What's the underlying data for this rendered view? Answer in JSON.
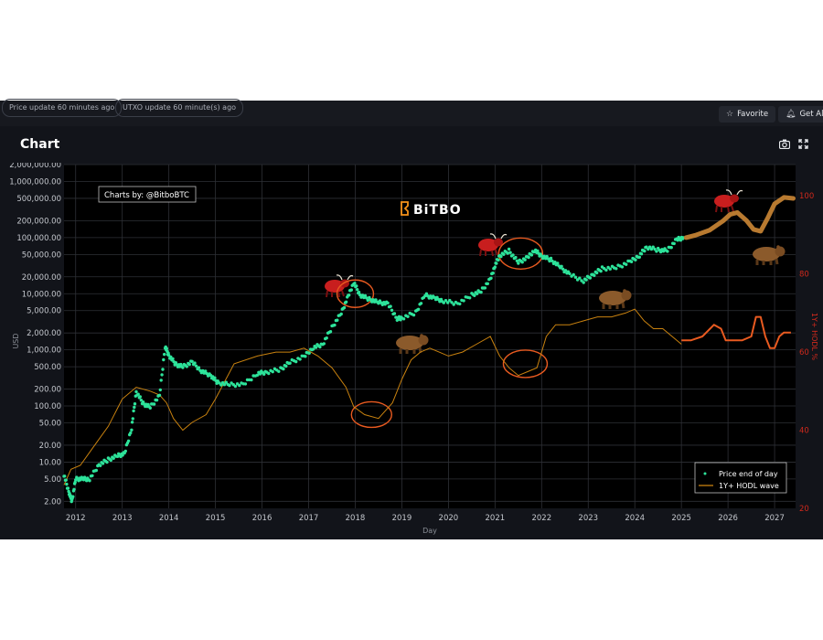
{
  "status": {
    "price_update": "Price update 60 minutes ago",
    "utxo_update": "UTXO update 60 minute(s) ago"
  },
  "actions": {
    "favorite": "Favorite",
    "get_alerts": "Get Aler"
  },
  "header": {
    "title": "Chart"
  },
  "colors": {
    "background": "#000000",
    "price": "#2de39a",
    "hodl": "#c9820f",
    "forecast": "#b87a30",
    "annotation": "#e85a20",
    "right_axis": "#d0291c"
  },
  "chart_data": {
    "type": "scatter",
    "watermark": "Charts by: @BitboBTC",
    "brand": "BiTBO",
    "xlabel": "Day",
    "ylabel": "USD",
    "y2label": "1Y+ HODL %",
    "x_ticks": [
      "2012",
      "2013",
      "2014",
      "2015",
      "2016",
      "2017",
      "2018",
      "2019",
      "2020",
      "2021",
      "2022",
      "2023",
      "2024",
      "2025",
      "2026",
      "2027"
    ],
    "y_ticks": [
      "2,000,000.00",
      "1,000,000.00",
      "500,000.00",
      "200,000.00",
      "100,000.00",
      "50,000.00",
      "20,000.00",
      "10,000.00",
      "5,000.00",
      "2,000.00",
      "1,000.00",
      "500.00",
      "200.00",
      "100.00",
      "50.00",
      "20.00",
      "10.00",
      "5.00",
      "2.00"
    ],
    "y_tick_values": [
      2000000,
      1000000,
      500000,
      200000,
      100000,
      50000,
      20000,
      10000,
      5000,
      2000,
      1000,
      500,
      200,
      100,
      50,
      20,
      10,
      5,
      2
    ],
    "y2_ticks": [
      "100",
      "80",
      "60",
      "40",
      "20"
    ],
    "y2_tick_values": [
      100,
      80,
      60,
      40,
      20
    ],
    "y_scale": "log",
    "y_range": [
      1.5,
      2000000
    ],
    "y2_range": [
      20,
      108
    ],
    "x_range": [
      2011.75,
      2027.45
    ],
    "grid": true,
    "legend_position": "bottom-right",
    "legend": [
      "Price end of day",
      "1Y+ HODL wave"
    ],
    "series": [
      {
        "name": "Price end of day",
        "axis": "left",
        "x": [
          2011.75,
          2011.85,
          2011.92,
          2012.0,
          2012.15,
          2012.3,
          2012.5,
          2012.7,
          2012.9,
          2013.05,
          2013.2,
          2013.3,
          2013.45,
          2013.6,
          2013.8,
          2013.92,
          2014.0,
          2014.15,
          2014.3,
          2014.5,
          2014.7,
          2014.9,
          2015.05,
          2015.3,
          2015.6,
          2015.9,
          2016.1,
          2016.4,
          2016.6,
          2016.9,
          2017.1,
          2017.3,
          2017.5,
          2017.7,
          2017.85,
          2017.97,
          2018.1,
          2018.3,
          2018.5,
          2018.7,
          2018.9,
          2019.0,
          2019.3,
          2019.5,
          2019.7,
          2019.9,
          2020.2,
          2020.5,
          2020.7,
          2020.9,
          2021.0,
          2021.1,
          2021.3,
          2021.5,
          2021.7,
          2021.85,
          2022.0,
          2022.2,
          2022.4,
          2022.6,
          2022.9,
          2023.1,
          2023.3,
          2023.6,
          2023.9,
          2024.1,
          2024.25,
          2024.5,
          2024.7,
          2024.9,
          2025.05
        ],
        "y": [
          6,
          3,
          2,
          5,
          5,
          5,
          9,
          11,
          13,
          14,
          40,
          180,
          110,
          95,
          150,
          1150,
          800,
          550,
          500,
          600,
          420,
          350,
          260,
          240,
          240,
          380,
          400,
          450,
          600,
          750,
          1100,
          1250,
          2500,
          4500,
          9000,
          16000,
          9500,
          8000,
          7000,
          6600,
          3600,
          3700,
          4600,
          9500,
          8300,
          7400,
          6700,
          9500,
          11000,
          18000,
          32000,
          48000,
          58000,
          36000,
          44000,
          60000,
          47000,
          40000,
          30000,
          22000,
          17000,
          22000,
          28000,
          29000,
          37000,
          48000,
          68000,
          60000,
          59000,
          92000,
          100000
        ]
      },
      {
        "name": "1Y+ HODL wave",
        "axis": "right",
        "x": [
          2011.75,
          2011.9,
          2012.1,
          2012.4,
          2012.7,
          2013.0,
          2013.3,
          2013.6,
          2013.8,
          2013.95,
          2014.1,
          2014.3,
          2014.5,
          2014.8,
          2015.0,
          2015.4,
          2015.9,
          2016.3,
          2016.6,
          2016.9,
          2017.2,
          2017.5,
          2017.8,
          2017.97,
          2018.2,
          2018.5,
          2018.8,
          2019.0,
          2019.2,
          2019.4,
          2019.6,
          2019.8,
          2020.0,
          2020.3,
          2020.6,
          2020.9,
          2021.1,
          2021.3,
          2021.5,
          2021.7,
          2021.9,
          2022.1,
          2022.3,
          2022.6,
          2022.9,
          2023.2,
          2023.5,
          2023.8,
          2024.0,
          2024.2,
          2024.4,
          2024.6,
          2024.8,
          2025.0
        ],
        "y": [
          26,
          30,
          31,
          36,
          41,
          48,
          51,
          50,
          49,
          47,
          43,
          40,
          42,
          44,
          48,
          57,
          59,
          60,
          60,
          61,
          59,
          56,
          51,
          46,
          44,
          43,
          47,
          53,
          58,
          60,
          61,
          60,
          59,
          60,
          62,
          64,
          59,
          56,
          54,
          55,
          56,
          64,
          67,
          67,
          68,
          69,
          69,
          70,
          71,
          68,
          66,
          66,
          64,
          62
        ]
      },
      {
        "name": "",
        "axis": "left",
        "x": [
          2025.1,
          2025.3,
          2025.6,
          2025.9,
          2026.05,
          2026.2,
          2026.4,
          2026.55,
          2026.7,
          2026.85,
          2027.0,
          2027.2,
          2027.4
        ],
        "y": [
          100000,
          110000,
          135000,
          200000,
          260000,
          280000,
          200000,
          140000,
          130000,
          220000,
          400000,
          520000,
          500000
        ]
      },
      {
        "name": "",
        "axis": "right",
        "x": [
          2025.0,
          2025.2,
          2025.45,
          2025.7,
          2025.85,
          2025.95,
          2026.05,
          2026.3,
          2026.5,
          2026.6,
          2026.7,
          2026.8,
          2026.9,
          2027.0,
          2027.1,
          2027.2,
          2027.35
        ],
        "y": [
          63,
          63,
          64,
          67,
          66,
          63,
          63,
          63,
          64,
          69,
          69,
          64,
          61,
          61,
          64,
          65,
          65
        ]
      }
    ]
  }
}
